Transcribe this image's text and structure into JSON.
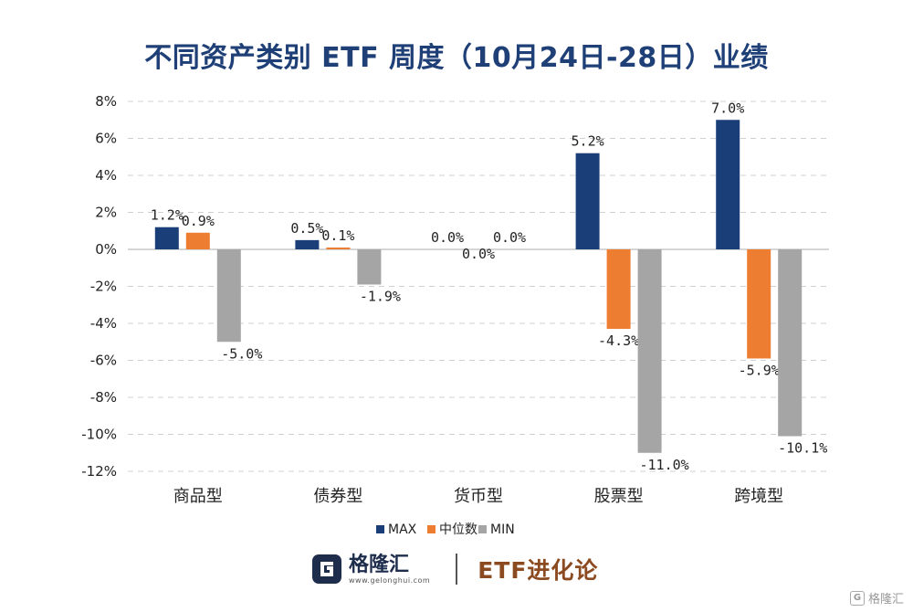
{
  "title": "不同资产类别 ETF 周度（10月24日-28日）业绩",
  "chart_data": {
    "type": "bar",
    "categories": [
      "商品型",
      "债券型",
      "货币型",
      "股票型",
      "跨境型"
    ],
    "series": [
      {
        "name": "MAX",
        "values": [
          1.2,
          0.5,
          0.0,
          5.2,
          7.0
        ],
        "labels": [
          "1.2%",
          "0.5%",
          "0.0%",
          "5.2%",
          "7.0%"
        ]
      },
      {
        "name": "中位数",
        "values": [
          0.9,
          0.1,
          0.0,
          -4.3,
          -5.9
        ],
        "labels": [
          "0.9%",
          "0.1%",
          "0.0%",
          "-4.3%",
          "-5.9%"
        ]
      },
      {
        "name": "MIN",
        "values": [
          -5.0,
          -1.9,
          0.0,
          -11.0,
          -10.1
        ],
        "labels": [
          "-5.0%",
          "-1.9%",
          "0.0%",
          "-11.0%",
          "-10.1%"
        ]
      }
    ],
    "ylim": [
      -12,
      8
    ],
    "yticks": [
      8,
      6,
      4,
      2,
      0,
      -2,
      -4,
      -6,
      -8,
      -10,
      -12
    ],
    "ytick_labels": [
      "8%",
      "6%",
      "4%",
      "2%",
      "0%",
      "-2%",
      "-4%",
      "-6%",
      "-8%",
      "-10%",
      "-12%"
    ],
    "grid": true,
    "legend": "bottom-center"
  },
  "colors": {
    "MAX": "#1a3f78",
    "中位数": "#ed7d31",
    "MIN": "#a5a5a5",
    "title": "#1f3f77"
  },
  "footer": {
    "brand_name": "格隆汇",
    "brand_url": "www.gelonghui.com",
    "subtitle": "ETF进化论"
  },
  "watermark": "格隆汇"
}
